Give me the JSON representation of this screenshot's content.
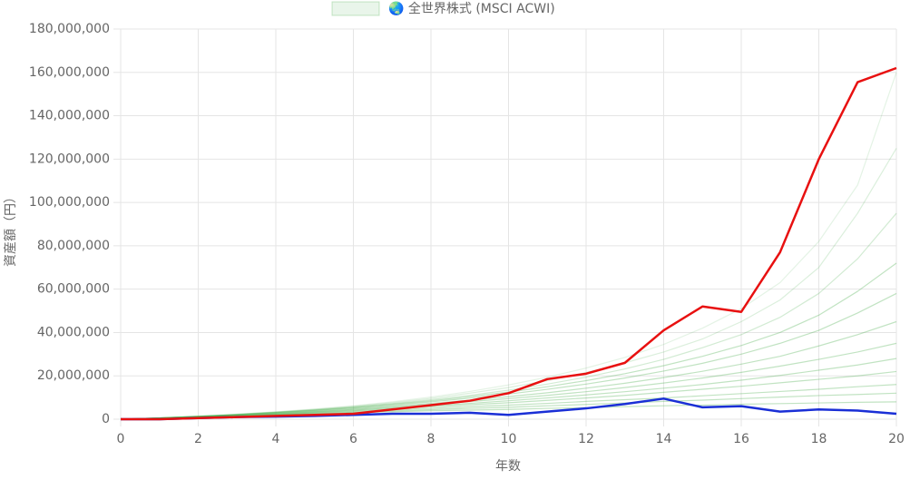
{
  "chart_data": {
    "type": "line",
    "x_label": "年数",
    "y_label": "資産額（円）",
    "x": [
      0,
      1,
      2,
      3,
      4,
      5,
      6,
      7,
      8,
      9,
      10,
      11,
      12,
      13,
      14,
      15,
      16,
      17,
      18,
      19,
      20
    ],
    "xlim": [
      0,
      20
    ],
    "xticks": [
      0,
      2,
      4,
      6,
      8,
      10,
      12,
      14,
      16,
      18,
      20
    ],
    "ylim": [
      0,
      180000000
    ],
    "yticks": [
      {
        "value": 0,
        "label": "0"
      },
      {
        "value": 20000000,
        "label": "20,000,000"
      },
      {
        "value": 40000000,
        "label": "40,000,000"
      },
      {
        "value": 60000000,
        "label": "60,000,000"
      },
      {
        "value": 80000000,
        "label": "80,000,000"
      },
      {
        "value": 100000000,
        "label": "100,000,000"
      },
      {
        "value": 120000000,
        "label": "120,000,000"
      },
      {
        "value": 140000000,
        "label": "140,000,000"
      },
      {
        "value": 160000000,
        "label": "160,000,000"
      },
      {
        "value": 180000000,
        "label": "180,000,000"
      }
    ],
    "grid": true,
    "series": [
      {
        "name": "🌏 全世界株式 (MSCI ACWI)",
        "color": "rgba(76,175,80,0.35)",
        "values": [
          0,
          500000,
          1000000,
          1500000,
          2000000,
          2500000,
          3000000,
          3400000,
          3900000,
          4200000,
          4500000,
          5000000,
          5300000,
          5800000,
          6200000,
          6500000,
          6900000,
          7200000,
          7500000,
          7800000,
          8000000
        ]
      },
      {
        "color": "rgba(76,175,80,0.35)",
        "values": [
          0,
          500000,
          1000000,
          1500000,
          2100000,
          2600000,
          3200000,
          3800000,
          4400000,
          5000000,
          5500000,
          6200000,
          6800000,
          7500000,
          8200000,
          8800000,
          9500000,
          10200000,
          10900000,
          11400000,
          12000000
        ]
      },
      {
        "color": "rgba(76,175,80,0.35)",
        "values": [
          0,
          500000,
          1000000,
          1600000,
          2200000,
          2900000,
          3600000,
          4300000,
          5000000,
          5800000,
          6500000,
          7300000,
          8200000,
          9000000,
          9800000,
          10800000,
          11800000,
          12800000,
          13800000,
          15000000,
          16000000
        ]
      },
      {
        "color": "rgba(76,175,80,0.35)",
        "values": [
          0,
          500000,
          1100000,
          1700000,
          2400000,
          3100000,
          3900000,
          4800000,
          5700000,
          6700000,
          7600000,
          8700000,
          9800000,
          11000000,
          12400000,
          13800000,
          15200000,
          16800000,
          18400000,
          20000000,
          22000000
        ]
      },
      {
        "color": "rgba(76,175,80,0.35)",
        "values": [
          0,
          500000,
          1100000,
          1800000,
          2500000,
          3300000,
          4200000,
          5200000,
          6200000,
          7300000,
          8500000,
          9800000,
          11200000,
          12700000,
          14300000,
          16000000,
          18000000,
          20200000,
          22600000,
          25000000,
          28000000
        ]
      },
      {
        "color": "rgba(76,175,80,0.35)",
        "values": [
          0,
          600000,
          1200000,
          1900000,
          2700000,
          3500000,
          4500000,
          5600000,
          6800000,
          8100000,
          9500000,
          11000000,
          12700000,
          14600000,
          16700000,
          19000000,
          21600000,
          24500000,
          27600000,
          31000000,
          35000000
        ]
      },
      {
        "color": "rgba(76,175,80,0.35)",
        "values": [
          0,
          600000,
          1200000,
          2000000,
          2800000,
          3700000,
          4800000,
          6000000,
          7300000,
          8800000,
          10400000,
          12200000,
          14300000,
          16600000,
          19200000,
          22100000,
          25400000,
          29000000,
          33800000,
          39000000,
          45000000
        ]
      },
      {
        "color": "rgba(76,175,80,0.35)",
        "values": [
          0,
          600000,
          1300000,
          2100000,
          3000000,
          4000000,
          5200000,
          6500000,
          8000000,
          9700000,
          11600000,
          13800000,
          16200000,
          19000000,
          22200000,
          25800000,
          30000000,
          35000000,
          41000000,
          49000000,
          58000000
        ]
      },
      {
        "color": "rgba(76,175,80,0.35)",
        "values": [
          0,
          600000,
          1300000,
          2100000,
          3100000,
          4200000,
          5400000,
          6900000,
          8500000,
          10400000,
          12500000,
          15000000,
          17800000,
          21000000,
          24700000,
          29000000,
          34000000,
          40000000,
          48000000,
          59000000,
          72000000
        ]
      },
      {
        "color": "rgba(76,175,80,0.25)",
        "values": [
          0,
          600000,
          1300000,
          2200000,
          3200000,
          4300000,
          5700000,
          7200000,
          9000000,
          11000000,
          13400000,
          16200000,
          19400000,
          23200000,
          27600000,
          33000000,
          39000000,
          47000000,
          58000000,
          74000000,
          95000000
        ]
      },
      {
        "color": "rgba(76,175,80,0.2)",
        "values": [
          0,
          600000,
          1400000,
          2300000,
          3300000,
          4500000,
          5900000,
          7600000,
          9600000,
          12000000,
          14600000,
          17800000,
          21500000,
          26000000,
          31000000,
          37000000,
          45000000,
          55000000,
          70000000,
          95000000,
          125000000
        ]
      },
      {
        "color": "rgba(76,175,80,0.15)",
        "values": [
          0,
          600000,
          1400000,
          2300000,
          3400000,
          4700000,
          6200000,
          8000000,
          10200000,
          12800000,
          15800000,
          19400000,
          23600000,
          28500000,
          34500000,
          42000000,
          51000000,
          63000000,
          82000000,
          108000000,
          160000000
        ]
      },
      {
        "color": "#1a2fd6",
        "width": 2.5,
        "values": [
          0,
          0,
          500000,
          1000000,
          1200000,
          1500000,
          2000000,
          2500000,
          2500000,
          3000000,
          2000000,
          3500000,
          5000000,
          7000000,
          9500000,
          5500000,
          6000000,
          3500000,
          4500000,
          4000000,
          2500000
        ]
      },
      {
        "color": "#e81010",
        "width": 2.5,
        "values": [
          0,
          0,
          500000,
          1000000,
          1500000,
          2000000,
          2500000,
          4500000,
          6500000,
          8500000,
          12000000,
          18500000,
          21000000,
          26000000,
          41000000,
          52000000,
          49500000,
          77000000,
          120000000,
          155500000,
          162000000
        ]
      }
    ]
  }
}
